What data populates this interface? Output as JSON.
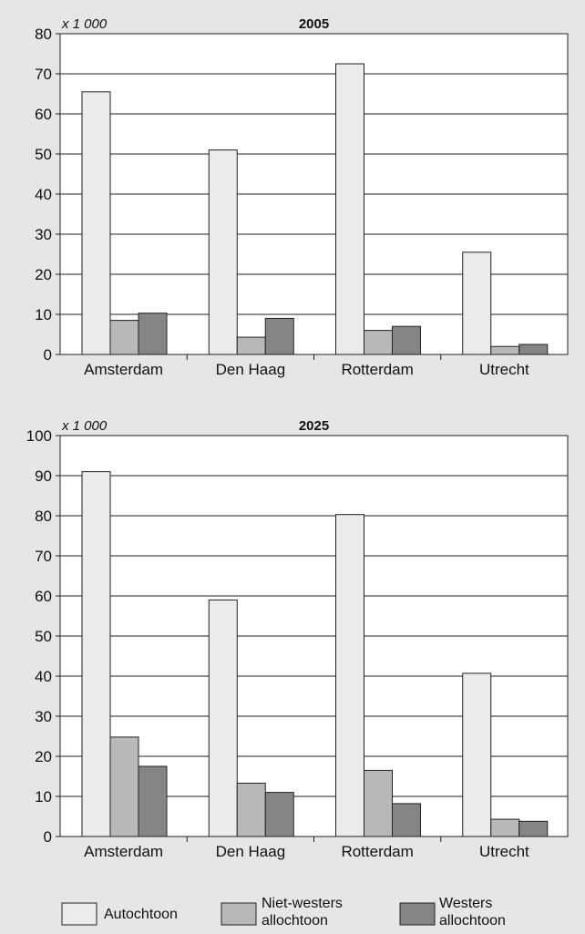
{
  "chart_data": [
    {
      "type": "bar",
      "title": "2005",
      "unit": "x 1 000",
      "categories": [
        "Amsterdam",
        "Den Haag",
        "Rotterdam",
        "Utrecht"
      ],
      "ylim": [
        0,
        80
      ],
      "yticks": [
        0,
        10,
        20,
        30,
        40,
        50,
        60,
        70,
        80
      ],
      "grid": true,
      "series": [
        {
          "name": "Autochtoon",
          "values": [
            65.5,
            51,
            72.5,
            25.5
          ]
        },
        {
          "name": "Niet-westers allochtoon",
          "values": [
            8.5,
            4.3,
            6,
            2
          ]
        },
        {
          "name": "Westers allochtoon",
          "values": [
            10.3,
            9,
            7,
            2.5
          ]
        }
      ]
    },
    {
      "type": "bar",
      "title": "2025",
      "unit": "x 1 000",
      "categories": [
        "Amsterdam",
        "Den Haag",
        "Rotterdam",
        "Utrecht"
      ],
      "ylim": [
        0,
        100
      ],
      "yticks": [
        0,
        10,
        20,
        30,
        40,
        50,
        60,
        70,
        80,
        90,
        100
      ],
      "grid": true,
      "series": [
        {
          "name": "Autochtoon",
          "values": [
            91,
            59,
            80.3,
            40.7
          ]
        },
        {
          "name": "Niet-westers allochtoon",
          "values": [
            24.8,
            13.3,
            16.5,
            4.3
          ]
        },
        {
          "name": "Westers allochtoon",
          "values": [
            17.5,
            11,
            8.2,
            3.8
          ]
        }
      ]
    }
  ],
  "legend": {
    "placement": "bottom",
    "items": [
      {
        "label_lines": [
          "Autochtoon"
        ],
        "color": "#ebebeb"
      },
      {
        "label_lines": [
          "Niet-westers",
          "allochtoon"
        ],
        "color": "#b8b8b8"
      },
      {
        "label_lines": [
          "Westers",
          "allochtoon"
        ],
        "color": "#858585"
      }
    ]
  },
  "colors": {
    "background": "#e6e6e6",
    "plot_background": "#ffffff",
    "series": [
      "#ebebeb",
      "#b8b8b8",
      "#858585"
    ],
    "stroke": "#222222"
  }
}
